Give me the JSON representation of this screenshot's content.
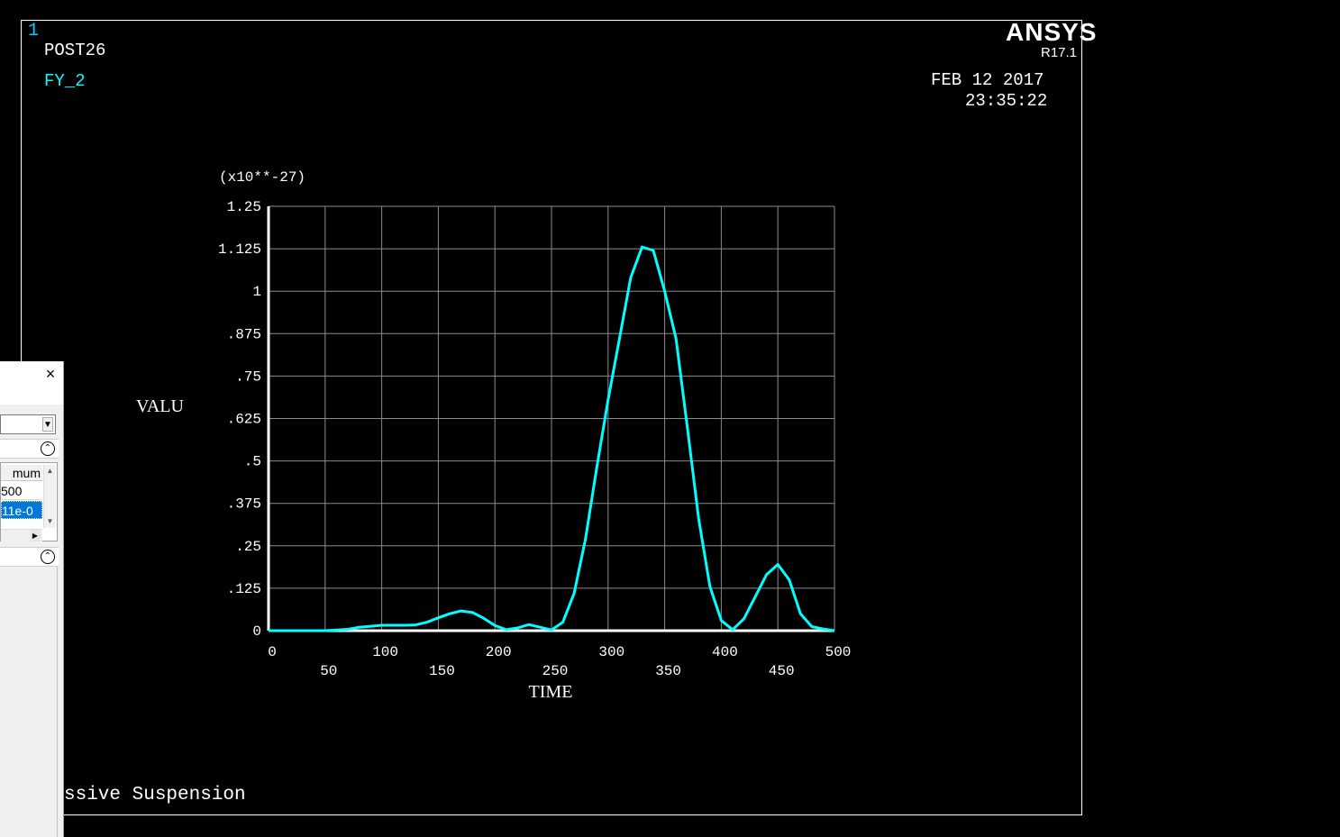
{
  "window_number": "1",
  "module": "POST26",
  "curve_label": "FY_2",
  "brand": "ANSYS",
  "version": "R17.1",
  "date": "FEB 12 2017",
  "time": "23:35:22",
  "subtitle": "ssive Suspension",
  "colors": {
    "curve": "#00ffff",
    "grid": "#8c8c8c",
    "axis": "#ffffff",
    "background": "#000000"
  },
  "panel": {
    "close_glyph": "×",
    "grid_header": "mum",
    "grid_cell_1": "500",
    "grid_cell_2": "11e-0"
  },
  "chart_data": {
    "type": "line",
    "xlabel": "TIME",
    "ylabel": "VALU",
    "y_multiplier_label": "(x10**-27)",
    "xlim": [
      0,
      500
    ],
    "ylim": [
      0,
      1.25
    ],
    "grid": true,
    "x_ticks_top": [
      "0",
      "100",
      "200",
      "300",
      "400",
      "500"
    ],
    "x_ticks_bottom": [
      "50",
      "150",
      "250",
      "350",
      "450"
    ],
    "y_ticks": [
      "0",
      ".125",
      ".25",
      ".375",
      ".5",
      ".625",
      ".75",
      ".875",
      "1",
      "1.125",
      "1.25"
    ],
    "series": [
      {
        "x": [
          0,
          10,
          20,
          30,
          40,
          50,
          60,
          70,
          80,
          90,
          100,
          110,
          120,
          130,
          140,
          150,
          160,
          170,
          180,
          190,
          200,
          210,
          220,
          230,
          240,
          250,
          260,
          270,
          280,
          290,
          300,
          310,
          320,
          330,
          340,
          350,
          360,
          370,
          380,
          390,
          400,
          410,
          420,
          430,
          440,
          450,
          460,
          470,
          480,
          490,
          500
        ],
        "y": [
          0,
          0,
          0,
          0,
          0,
          0,
          0.002,
          0.004,
          0.01,
          0.013,
          0.016,
          0.016,
          0.016,
          0.017,
          0.025,
          0.038,
          0.05,
          0.058,
          0.054,
          0.037,
          0.015,
          0.003,
          0.008,
          0.018,
          0.01,
          0.002,
          0.025,
          0.11,
          0.27,
          0.48,
          0.68,
          0.86,
          1.04,
          1.13,
          1.12,
          1.0,
          0.86,
          0.6,
          0.33,
          0.13,
          0.03,
          0.003,
          0.035,
          0.1,
          0.165,
          0.195,
          0.15,
          0.05,
          0.012,
          0.005,
          0.0
        ]
      }
    ]
  }
}
